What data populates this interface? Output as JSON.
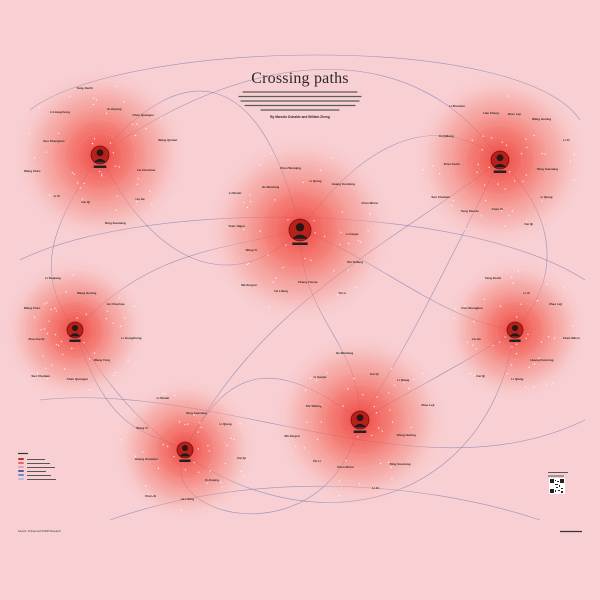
{
  "poster": {
    "title": "Crossing paths",
    "byline": "By Marcelo Duhalde and William Zheng",
    "source": "Source: Xinhua and SCMP Research"
  },
  "colors": {
    "background": "#f8cfd2",
    "cluster": "#f25c54",
    "line": "#4b5ea8"
  },
  "icons": {
    "portrait": "leader-portrait-icon",
    "qr": "qr-code-icon"
  },
  "legend": {
    "items": [
      "",
      "",
      "",
      "",
      "",
      ""
    ]
  },
  "clusters": [
    {
      "name": "cluster-top-left",
      "label_count": 12,
      "labels": [
        "Xi Jinping",
        "Chen Quanguo",
        "Wang Qishan",
        "Hu Chunhua",
        "Liu He",
        "Ding Xuexiang",
        "Cai Qi",
        "Li Xi",
        "Wang Chen",
        "Guo Shengkun",
        "Li Hongzhong",
        "Yang Jiechi"
      ]
    },
    {
      "name": "cluster-top-center",
      "label_count": 14,
      "labels": [
        "Li Qiang",
        "Huang Kunming",
        "Chen Min'er",
        "Li Ganjie",
        "Shi Taifeng",
        "Yin Li",
        "Zhang Youxia",
        "He Lifeng",
        "Ma Xingrui",
        "Wang Yi",
        "Yuan Jiajun",
        "Li Shulei",
        "He Weidong",
        "Chen Wenqing"
      ]
    },
    {
      "name": "cluster-top-right",
      "label_count": 13,
      "labels": [
        "Zhao Leji",
        "Wang Huning",
        "Li Xi",
        "Ding Xuexiang",
        "Li Qiang",
        "Cai Qi",
        "Chen Xi",
        "Yang Xiaodu",
        "Sun Chunlan",
        "Zhao Kezhi",
        "Xu Qiliang",
        "Li Zhanshu",
        "Han Zheng"
      ]
    },
    {
      "name": "cluster-middle-left",
      "label_count": 9,
      "labels": [
        "Wang Huning",
        "Hu Chunhua",
        "Li Hongzhong",
        "Wang Yong",
        "Chen Quanguo",
        "Sun Chunlan",
        "Zhao Kezhi",
        "Wang Chen",
        "Li Keqiang"
      ]
    },
    {
      "name": "cluster-middle-right",
      "label_count": 9,
      "labels": [
        "Li Xi",
        "Zhao Leji",
        "Chen Min'er",
        "Huang Kunming",
        "Li Qiang",
        "Cai Qi",
        "Liu He",
        "Guo Shengkun",
        "Yang Jiechi"
      ]
    },
    {
      "name": "cluster-bottom-left",
      "label_count": 9,
      "labels": [
        "Ding Xuexiang",
        "Li Qiang",
        "Cai Qi",
        "Xi Jinping",
        "He Lifeng",
        "Chen Xi",
        "Huang Kunming",
        "Wang Yi",
        "Li Shulei"
      ]
    },
    {
      "name": "cluster-bottom-center",
      "label_count": 12,
      "labels": [
        "Cai Qi",
        "Li Qiang",
        "Zhao Leji",
        "Wang Huning",
        "Ding Xuexiang",
        "Li Xi",
        "Chen Min'er",
        "Yin Li",
        "Ma Xingrui",
        "Shi Taifeng",
        "Li Ganjie",
        "He Weidong"
      ]
    }
  ]
}
